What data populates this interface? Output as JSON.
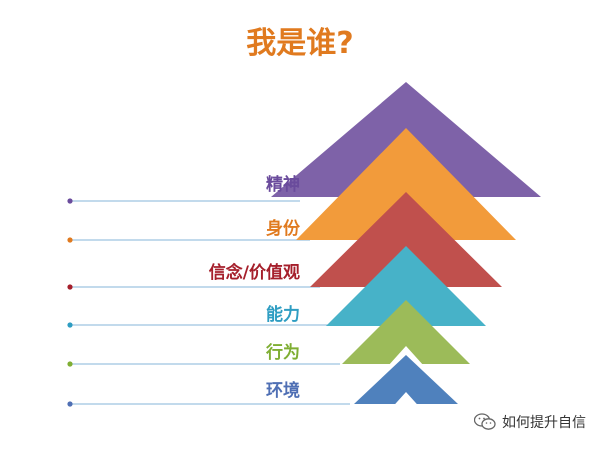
{
  "title": "我是谁?",
  "colors": {
    "title": "#E07A1F",
    "line": "#9EC3E0",
    "dot": "#4F6C8C"
  },
  "levels": [
    {
      "label": "精神",
      "color": "#7E62A8",
      "text_color": "#6A4B9C"
    },
    {
      "label": "身份",
      "color": "#F29B3B",
      "text_color": "#E07A1F"
    },
    {
      "label": "信念/价值观",
      "color": "#C0504D",
      "text_color": "#A51F2B"
    },
    {
      "label": "能力",
      "color": "#47B2C8",
      "text_color": "#2E9DC2"
    },
    {
      "label": "行为",
      "color": "#9CBB59",
      "text_color": "#7FAE33"
    },
    {
      "label": "环境",
      "color": "#4F81BD",
      "text_color": "#4F6FB4"
    }
  ],
  "watermark": {
    "text": "如何提升自信",
    "icon": "wechat-icon"
  }
}
